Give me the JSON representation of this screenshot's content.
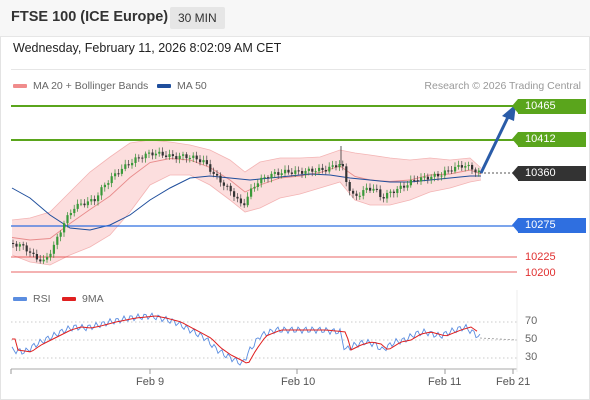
{
  "header": {
    "title": "FTSE 100 (ICE Europe)",
    "timeframe": "30 MIN"
  },
  "datetime": "Wednesday, February 11, 2026 8:02:09 AM CET",
  "legend": {
    "bb": {
      "label": "MA 20 + Bollinger Bands",
      "color": "#f08c8c"
    },
    "ma50": {
      "label": "MA 50",
      "color": "#1f4e9c"
    },
    "credit": "Research © 2026 Trading Central"
  },
  "levels": {
    "r2": {
      "label": "10465",
      "color": "#5aa51c"
    },
    "r1": {
      "label": "10412",
      "color": "#5aa51c"
    },
    "last": {
      "label": "10360",
      "color": "#333333"
    },
    "s1": {
      "label": "10275",
      "color": "#2f6fe0"
    },
    "s2": {
      "label": "10225",
      "color": "#e03030"
    },
    "s3": {
      "label": "10200",
      "color": "#e03030"
    }
  },
  "rsi": {
    "legend_rsi": "RSI",
    "legend_ma": "9MA",
    "rsi_color": "#5b8de0",
    "ma_color": "#e02020",
    "levels": [
      "70",
      "50",
      "30"
    ]
  },
  "xaxis": {
    "labels": [
      "Feb 9",
      "Feb 10",
      "Feb 11",
      "Feb 21"
    ]
  }
}
